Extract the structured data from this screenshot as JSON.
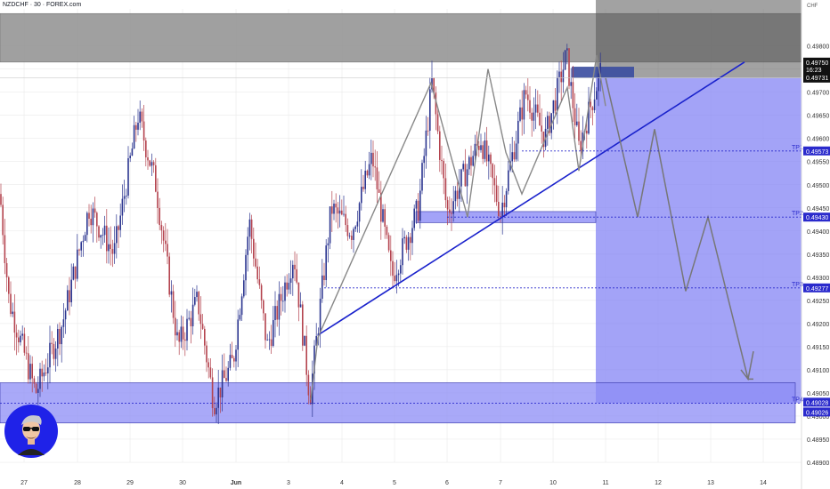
{
  "header": {
    "title": "NZDCHF · 30 · FOREX.com",
    "currency": "CHF"
  },
  "chart_data": {
    "type": "candlestick",
    "title": "NZDCHF · 30 · FOREX.com",
    "ylim": [
      0.489,
      0.4988
    ],
    "y_ticks": [
      0.498,
      0.4975,
      0.497,
      0.4965,
      0.496,
      0.4955,
      0.495,
      0.4945,
      0.494,
      0.4935,
      0.493,
      0.4925,
      0.492,
      0.4915,
      0.491,
      0.4905,
      0.49,
      0.4895,
      0.489
    ],
    "y_tick_labels": [
      "0.49800",
      "0.49750",
      "0.49700",
      "0.49650",
      "0.49600",
      "0.49550",
      "0.49500",
      "0.49450",
      "0.49400",
      "0.49350",
      "0.49300",
      "0.49250",
      "0.49200",
      "0.49150",
      "0.49100",
      "0.49050",
      "0.49000",
      "0.48950",
      "0.48900"
    ],
    "x_tick_labels": [
      "27",
      "28",
      "29",
      "30",
      "Jun",
      "3",
      "4",
      "5",
      "6",
      "7",
      "10",
      "11",
      "12",
      "13",
      "14"
    ],
    "current_price": {
      "value": "0.49750",
      "countdown": "16:23",
      "second_value": "0.49731"
    },
    "levels": [
      {
        "name": "TP1",
        "value": 0.49573,
        "label": "0.49573"
      },
      {
        "name": "TP2",
        "value": 0.4943,
        "label": "0.49430"
      },
      {
        "name": "TP3",
        "value": 0.49277,
        "label": "0.49277"
      },
      {
        "name": "TP4",
        "value": 0.49028,
        "label": "0.49028"
      },
      {
        "name": "",
        "value": 0.49026,
        "label": "0.49026"
      }
    ],
    "zones": [
      {
        "kind": "supply",
        "top": 0.4987,
        "bottom": 0.49765,
        "color": "#9e9e9e"
      },
      {
        "kind": "demand",
        "top": 0.49072,
        "bottom": 0.48985,
        "color": "#8c8cf6"
      },
      {
        "kind": "support",
        "top": 0.49442,
        "bottom": 0.49418,
        "color": "#8c8cf6"
      }
    ],
    "short_position": {
      "entry": 0.49731,
      "stop": 0.4988,
      "target": 0.49028,
      "color_profit": "#8080f4",
      "color_loss": "#7a7a7a"
    },
    "trendline": {
      "start": {
        "x": "3",
        "y": 0.49175
      },
      "end": {
        "x": "13",
        "y": 0.49765
      },
      "color": "#1a22cc"
    },
    "price_path": [
      0.49035,
      0.4917,
      0.4972,
      0.4943,
      0.4975,
      0.4957,
      0.4948,
      0.4971,
      0.4953,
      0.4978,
      0.4967,
      0.4977
    ],
    "projection": [
      0.49731,
      0.4958,
      0.4943,
      0.4962,
      0.4927,
      0.4943,
      0.4908
    ],
    "colors": {
      "bull": "#2b3590",
      "bear": "#b4434e",
      "zone": "#8c8cf6",
      "grid": "#e6e6e6"
    }
  }
}
